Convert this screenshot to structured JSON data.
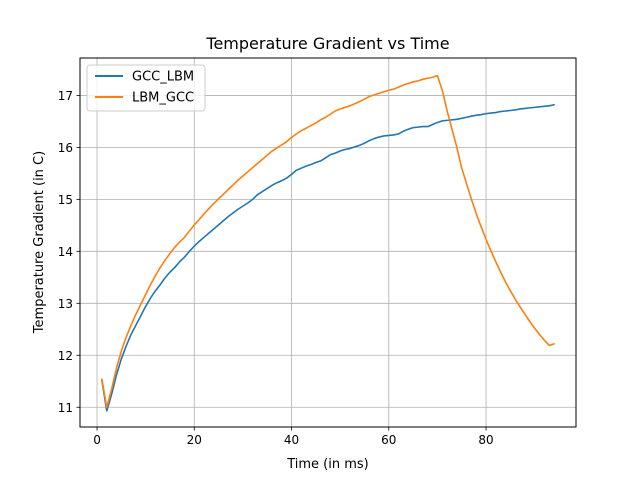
{
  "chart_data": {
    "type": "line",
    "title": "Temperature Gradient vs Time",
    "xlabel": "Time (in ms)",
    "ylabel": "Temperature Gradient (in C)",
    "xlim": [
      -3.5,
      98.5
    ],
    "ylim": [
      10.62,
      17.72
    ],
    "xticks": [
      0,
      20,
      40,
      60,
      80
    ],
    "yticks": [
      11,
      12,
      13,
      14,
      15,
      16,
      17
    ],
    "grid": true,
    "legend_position": "top-left",
    "series": [
      {
        "name": "GCC_LBM",
        "color": "#1f77b4",
        "points": [
          [
            1,
            11.52
          ],
          [
            2,
            10.93
          ],
          [
            3,
            11.25
          ],
          [
            4,
            11.62
          ],
          [
            5,
            11.93
          ],
          [
            6,
            12.18
          ],
          [
            7,
            12.4
          ],
          [
            8,
            12.58
          ],
          [
            9,
            12.76
          ],
          [
            10,
            12.94
          ],
          [
            11,
            13.1
          ],
          [
            12,
            13.24
          ],
          [
            13,
            13.36
          ],
          [
            14,
            13.49
          ],
          [
            15,
            13.6
          ],
          [
            16,
            13.69
          ],
          [
            17,
            13.8
          ],
          [
            18,
            13.89
          ],
          [
            19,
            14.0
          ],
          [
            20,
            14.1
          ],
          [
            21,
            14.19
          ],
          [
            22,
            14.27
          ],
          [
            23,
            14.35
          ],
          [
            24,
            14.43
          ],
          [
            25,
            14.51
          ],
          [
            26,
            14.59
          ],
          [
            27,
            14.67
          ],
          [
            28,
            14.74
          ],
          [
            29,
            14.81
          ],
          [
            30,
            14.87
          ],
          [
            31,
            14.93
          ],
          [
            32,
            15.0
          ],
          [
            33,
            15.09
          ],
          [
            34,
            15.15
          ],
          [
            35,
            15.21
          ],
          [
            36,
            15.27
          ],
          [
            37,
            15.32
          ],
          [
            38,
            15.36
          ],
          [
            39,
            15.41
          ],
          [
            40,
            15.48
          ],
          [
            41,
            15.56
          ],
          [
            42,
            15.6
          ],
          [
            43,
            15.64
          ],
          [
            44,
            15.67
          ],
          [
            45,
            15.71
          ],
          [
            46,
            15.74
          ],
          [
            47,
            15.8
          ],
          [
            48,
            15.86
          ],
          [
            49,
            15.89
          ],
          [
            50,
            15.93
          ],
          [
            51,
            15.96
          ],
          [
            52,
            15.98
          ],
          [
            53,
            16.01
          ],
          [
            54,
            16.04
          ],
          [
            55,
            16.08
          ],
          [
            56,
            16.13
          ],
          [
            57,
            16.17
          ],
          [
            58,
            16.2
          ],
          [
            59,
            16.22
          ],
          [
            60,
            16.23
          ],
          [
            61,
            16.24
          ],
          [
            62,
            16.26
          ],
          [
            63,
            16.31
          ],
          [
            64,
            16.35
          ],
          [
            65,
            16.38
          ],
          [
            66,
            16.39
          ],
          [
            67,
            16.4
          ],
          [
            68,
            16.4
          ],
          [
            69,
            16.44
          ],
          [
            70,
            16.48
          ],
          [
            71,
            16.51
          ],
          [
            72,
            16.52
          ],
          [
            73,
            16.53
          ],
          [
            74,
            16.54
          ],
          [
            75,
            16.56
          ],
          [
            76,
            16.58
          ],
          [
            77,
            16.6
          ],
          [
            78,
            16.62
          ],
          [
            79,
            16.63
          ],
          [
            80,
            16.65
          ],
          [
            81,
            16.66
          ],
          [
            82,
            16.67
          ],
          [
            83,
            16.69
          ],
          [
            84,
            16.7
          ],
          [
            85,
            16.71
          ],
          [
            86,
            16.72
          ],
          [
            87,
            16.74
          ],
          [
            88,
            16.75
          ],
          [
            89,
            16.76
          ],
          [
            90,
            16.77
          ],
          [
            91,
            16.78
          ],
          [
            92,
            16.79
          ],
          [
            93,
            16.8
          ],
          [
            94,
            16.82
          ]
        ]
      },
      {
        "name": "LBM_GCC",
        "color": "#ff7f0e",
        "points": [
          [
            1,
            11.54
          ],
          [
            2,
            11.0
          ],
          [
            3,
            11.35
          ],
          [
            4,
            11.75
          ],
          [
            5,
            12.08
          ],
          [
            6,
            12.35
          ],
          [
            7,
            12.58
          ],
          [
            8,
            12.79
          ],
          [
            9,
            12.98
          ],
          [
            10,
            13.17
          ],
          [
            11,
            13.36
          ],
          [
            12,
            13.53
          ],
          [
            13,
            13.69
          ],
          [
            14,
            13.83
          ],
          [
            15,
            13.96
          ],
          [
            16,
            14.08
          ],
          [
            17,
            14.18
          ],
          [
            18,
            14.27
          ],
          [
            19,
            14.39
          ],
          [
            20,
            14.51
          ],
          [
            21,
            14.61
          ],
          [
            22,
            14.72
          ],
          [
            23,
            14.82
          ],
          [
            24,
            14.92
          ],
          [
            25,
            15.01
          ],
          [
            26,
            15.1
          ],
          [
            27,
            15.19
          ],
          [
            28,
            15.28
          ],
          [
            29,
            15.37
          ],
          [
            30,
            15.45
          ],
          [
            31,
            15.53
          ],
          [
            32,
            15.61
          ],
          [
            33,
            15.69
          ],
          [
            34,
            15.77
          ],
          [
            35,
            15.85
          ],
          [
            36,
            15.93
          ],
          [
            37,
            15.99
          ],
          [
            38,
            16.05
          ],
          [
            39,
            16.11
          ],
          [
            40,
            16.19
          ],
          [
            41,
            16.26
          ],
          [
            42,
            16.32
          ],
          [
            43,
            16.37
          ],
          [
            44,
            16.42
          ],
          [
            45,
            16.47
          ],
          [
            46,
            16.53
          ],
          [
            47,
            16.58
          ],
          [
            48,
            16.64
          ],
          [
            49,
            16.7
          ],
          [
            50,
            16.74
          ],
          [
            51,
            16.77
          ],
          [
            52,
            16.8
          ],
          [
            53,
            16.84
          ],
          [
            54,
            16.88
          ],
          [
            55,
            16.93
          ],
          [
            56,
            16.98
          ],
          [
            57,
            17.01
          ],
          [
            58,
            17.04
          ],
          [
            59,
            17.07
          ],
          [
            60,
            17.1
          ],
          [
            61,
            17.12
          ],
          [
            62,
            17.16
          ],
          [
            63,
            17.2
          ],
          [
            64,
            17.23
          ],
          [
            65,
            17.26
          ],
          [
            66,
            17.28
          ],
          [
            67,
            17.31
          ],
          [
            68,
            17.33
          ],
          [
            69,
            17.35
          ],
          [
            70,
            17.38
          ],
          [
            71,
            17.1
          ],
          [
            72,
            16.7
          ],
          [
            73,
            16.35
          ],
          [
            74,
            16.0
          ],
          [
            75,
            15.6
          ],
          [
            76,
            15.3
          ],
          [
            77,
            15.0
          ],
          [
            78,
            14.72
          ],
          [
            79,
            14.47
          ],
          [
            80,
            14.23
          ],
          [
            81,
            14.01
          ],
          [
            82,
            13.8
          ],
          [
            83,
            13.6
          ],
          [
            84,
            13.41
          ],
          [
            85,
            13.24
          ],
          [
            86,
            13.08
          ],
          [
            87,
            12.93
          ],
          [
            88,
            12.79
          ],
          [
            89,
            12.65
          ],
          [
            90,
            12.52
          ],
          [
            91,
            12.4
          ],
          [
            92,
            12.29
          ],
          [
            93,
            12.19
          ],
          [
            94,
            12.22
          ]
        ]
      }
    ]
  },
  "ui": {
    "axes_color": "#000000",
    "grid_color": "#b0b0b0",
    "background": "#ffffff"
  }
}
